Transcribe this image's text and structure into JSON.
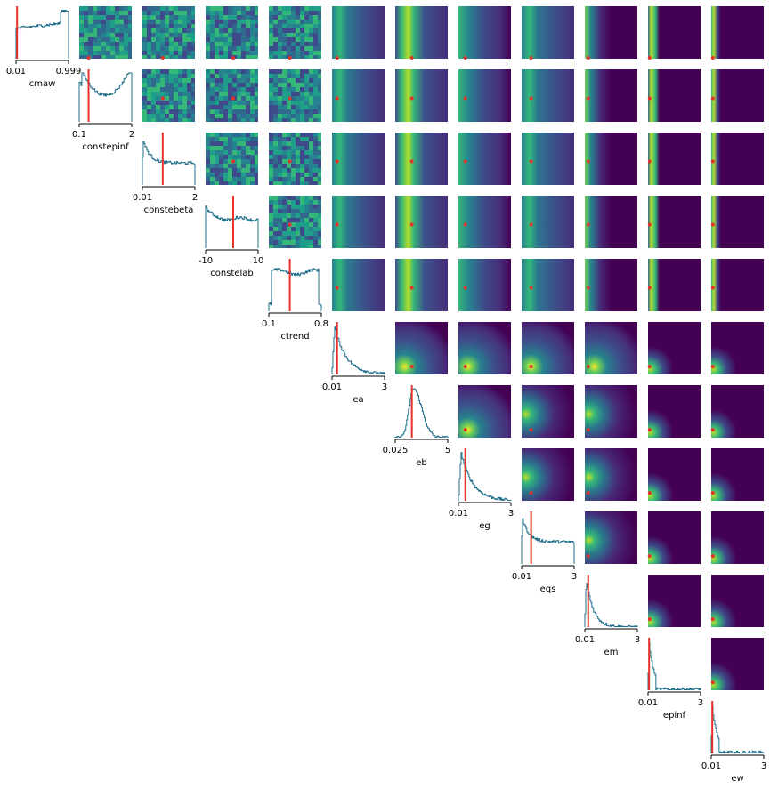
{
  "chart_data": {
    "type": "corner",
    "colormap": "viridis",
    "histogram_color": "#1f6f8b",
    "marker_color": "#e8302a",
    "parameters": [
      {
        "name": "cmaw",
        "range": [
          0.01,
          0.999
        ],
        "tick_labels": [
          "0.01",
          "0.999"
        ],
        "marker": 0.012,
        "hist_shape": "flat-rising"
      },
      {
        "name": "constepinf",
        "range": [
          0.1,
          2
        ],
        "tick_labels": [
          "0.1",
          "2"
        ],
        "marker": 0.44,
        "hist_shape": "u-shape"
      },
      {
        "name": "constebeta",
        "range": [
          0.01,
          2
        ],
        "tick_labels": [
          "0.01",
          "2"
        ],
        "marker": 0.78,
        "hist_shape": "decay-flat"
      },
      {
        "name": "constelab",
        "range": [
          -10,
          10
        ],
        "tick_labels": [
          "-10",
          "10"
        ],
        "marker": 0.5,
        "hist_shape": "bumpy-flat"
      },
      {
        "name": "ctrend",
        "range": [
          0.1,
          0.8
        ],
        "tick_labels": [
          "0.1",
          "0.8"
        ],
        "marker": 0.38,
        "hist_shape": "plateau"
      },
      {
        "name": "ea",
        "range": [
          0.01,
          3
        ],
        "tick_labels": [
          "0.01",
          "3"
        ],
        "marker": 0.3,
        "hist_shape": "skewed-peak"
      },
      {
        "name": "eb",
        "range": [
          0.025,
          5
        ],
        "tick_labels": [
          "0.025",
          "5"
        ],
        "marker": 1.6,
        "hist_shape": "peak"
      },
      {
        "name": "eg",
        "range": [
          0.01,
          3
        ],
        "tick_labels": [
          "0.01",
          "3"
        ],
        "marker": 0.4,
        "hist_shape": "skewed-peak"
      },
      {
        "name": "eqs",
        "range": [
          0.01,
          3
        ],
        "tick_labels": [
          "0.01",
          "3"
        ],
        "marker": 0.55,
        "hist_shape": "decay-flat"
      },
      {
        "name": "em",
        "range": [
          0.01,
          3
        ],
        "tick_labels": [
          "0.01",
          "3"
        ],
        "marker": 0.2,
        "hist_shape": "sharp-decay"
      },
      {
        "name": "epinf",
        "range": [
          0.01,
          3
        ],
        "tick_labels": [
          "0.01",
          "3"
        ],
        "marker": 0.06,
        "hist_shape": "spike"
      },
      {
        "name": "ew",
        "range": [
          0.01,
          3
        ],
        "tick_labels": [
          "0.01",
          "3"
        ],
        "marker": 0.04,
        "hist_shape": "spike"
      }
    ]
  }
}
